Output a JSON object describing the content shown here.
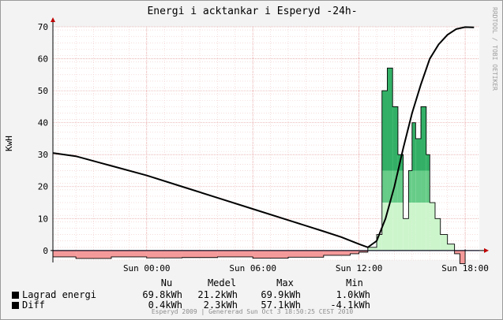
{
  "window": {
    "title": "Energi i acktankar i Esperyd -24h-",
    "side_label": "RRDTOOL / TOBI OETIKER",
    "footer": "Esperyd 2009 | Genererad Sun Oct  3 18:50:25 CEST 2010"
  },
  "legend": {
    "headers": [
      "Nu",
      "Medel",
      "Max",
      "Min"
    ],
    "rows": [
      {
        "name": "Lagrad energi",
        "nu": "69.8kWh",
        "medel": "21.2kWh",
        "max": "69.9kWh",
        "min": "1.0kWh"
      },
      {
        "name": "Diff",
        "nu": "0.4kWh",
        "medel": "2.3kWh",
        "max": "57.1kWh",
        "min": "-4.1kWh"
      }
    ]
  },
  "chart_data": {
    "type": "area",
    "title": "Energi i acktankar i Esperyd -24h-",
    "ylabel": "KwH",
    "xlabel": "",
    "ylim": [
      -3,
      70
    ],
    "yticks": [
      0,
      10,
      20,
      30,
      40,
      50,
      60,
      70
    ],
    "x_range_hours": [
      -5.3,
      18.8
    ],
    "xticks": [
      {
        "label": "Sun 00:00",
        "hour": 0
      },
      {
        "label": "Sun 06:00",
        "hour": 6
      },
      {
        "label": "Sun 12:00",
        "hour": 12
      },
      {
        "label": "Sun 18:00",
        "hour": 18
      }
    ],
    "grid": true,
    "colors": {
      "line": "#000000",
      "positive_fill": "#ccf5cc",
      "positive_fill_mid": "#66cc88",
      "positive_fill_dark": "#33b066",
      "negative_fill": "#f59a9a",
      "grid": "#e8a8a8",
      "zero_line": "#2222aa"
    },
    "series": [
      {
        "name": "Lagrad energi",
        "x": [
          -5.3,
          -4.0,
          -2.0,
          0.0,
          2.0,
          4.0,
          6.0,
          8.0,
          10.0,
          11.0,
          12.0,
          12.5,
          13.0,
          13.5,
          14.0,
          14.5,
          15.0,
          15.5,
          16.0,
          16.5,
          17.0,
          17.5,
          18.0,
          18.5
        ],
        "values": [
          30.5,
          29.5,
          26.5,
          23.5,
          20.0,
          16.5,
          13.0,
          9.5,
          6.0,
          4.2,
          2.0,
          1.0,
          3.0,
          10.0,
          20.0,
          32.0,
          43.0,
          52.0,
          60.0,
          64.5,
          67.5,
          69.3,
          69.9,
          69.8
        ]
      },
      {
        "name": "Diff",
        "x": [
          -5.3,
          -4.0,
          -2.0,
          0.0,
          2.0,
          4.0,
          6.0,
          8.0,
          10.0,
          11.5,
          12.0,
          12.5,
          13.0,
          13.3,
          13.6,
          13.9,
          14.2,
          14.5,
          14.8,
          15.0,
          15.2,
          15.5,
          15.8,
          16.0,
          16.3,
          16.6,
          17.0,
          17.4,
          17.7,
          18.0
        ],
        "values": [
          -2.0,
          -2.5,
          -2.0,
          -2.3,
          -2.2,
          -2.0,
          -2.4,
          -2.1,
          -1.5,
          -1.0,
          -0.5,
          1.0,
          5.0,
          50.0,
          57.1,
          45.0,
          30.0,
          10.0,
          25.0,
          40.0,
          35.0,
          45.0,
          30.0,
          15.0,
          10.0,
          5.0,
          2.0,
          -1.0,
          -4.1,
          0.4
        ]
      }
    ]
  }
}
